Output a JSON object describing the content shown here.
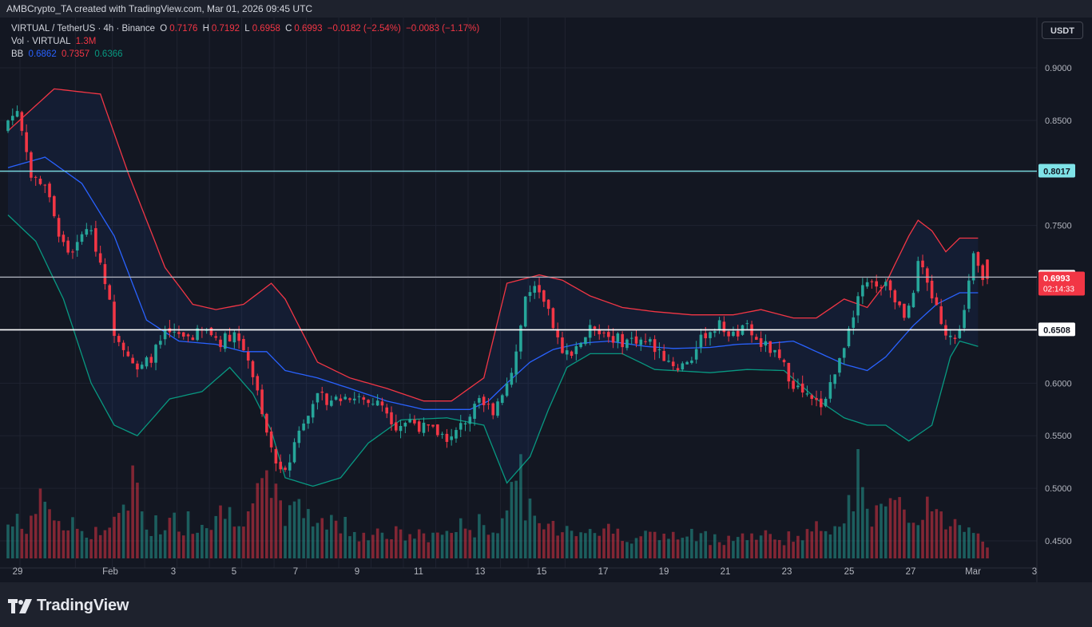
{
  "header": {
    "attribution": "AMBCrypto_TA created with TradingView.com, Mar 01, 2026 09:45 UTC"
  },
  "legend": {
    "symbol": "VIRTUAL / TetherUS · 4h · Binance",
    "open_label": "O",
    "open": "0.7176",
    "high_label": "H",
    "high": "0.7192",
    "low_label": "L",
    "low": "0.6958",
    "close_label": "C",
    "close": "0.6993",
    "change": "−0.0182 (−2.54%)",
    "change2": "−0.0083 (−1.17%)",
    "vol_label": "Vol · VIRTUAL",
    "vol_value": "1.3M",
    "bb_label": "BB",
    "bb_basis": "0.6862",
    "bb_upper": "0.7357",
    "bb_lower": "0.6366"
  },
  "currency_button": "USDT",
  "footer": {
    "brand": "TradingView"
  },
  "colors": {
    "background": "#131722",
    "up": "#26a69a",
    "down": "#f23645",
    "bb_basis": "#2962ff",
    "bb_upper": "#f23645",
    "bb_lower": "#089981",
    "level_cyan": "#7fe3e8",
    "level_grey": "#b2b5be",
    "level_white": "#ffffff"
  },
  "chart_data": {
    "type": "candlestick",
    "interval": "4h",
    "ylim": [
      0.43,
      0.92
    ],
    "y_ticks": [
      "0.9000",
      "0.8500",
      "0.7500",
      "0.6000",
      "0.5500",
      "0.5000",
      "0.4500"
    ],
    "x_ticks": [
      "29",
      "Feb",
      "3",
      "5",
      "7",
      "9",
      "11",
      "13",
      "15",
      "17",
      "19",
      "21",
      "23",
      "25",
      "27",
      "Mar",
      "3"
    ],
    "horizontal_levels": [
      {
        "value": 0.8017,
        "label": "0.8017",
        "color": "#7fe3e8"
      },
      {
        "value": 0.7009,
        "label": "0.7009",
        "color": "#b2b5be"
      },
      {
        "value": 0.6508,
        "label": "0.6508",
        "color": "#ffffff"
      }
    ],
    "last_price": {
      "value": 0.6993,
      "label": "0.6993",
      "countdown": "02:14:33"
    },
    "bb_upper_key": [
      [
        0,
        0.84
      ],
      [
        10,
        0.88
      ],
      [
        20,
        0.875
      ],
      [
        26,
        0.8
      ],
      [
        34,
        0.71
      ],
      [
        40,
        0.675
      ],
      [
        45,
        0.67
      ],
      [
        51,
        0.675
      ],
      [
        57,
        0.695
      ],
      [
        60,
        0.68
      ],
      [
        67,
        0.62
      ],
      [
        74,
        0.605
      ],
      [
        82,
        0.595
      ],
      [
        90,
        0.583
      ],
      [
        96,
        0.583
      ],
      [
        103,
        0.605
      ],
      [
        108,
        0.695
      ],
      [
        115,
        0.703
      ],
      [
        120,
        0.698
      ],
      [
        126,
        0.683
      ],
      [
        133,
        0.672
      ],
      [
        140,
        0.668
      ],
      [
        148,
        0.665
      ],
      [
        157,
        0.665
      ],
      [
        163,
        0.67
      ],
      [
        170,
        0.662
      ],
      [
        175,
        0.662
      ],
      [
        181,
        0.68
      ],
      [
        186,
        0.672
      ],
      [
        190,
        0.695
      ],
      [
        195,
        0.74
      ],
      [
        197,
        0.755
      ],
      [
        200,
        0.745
      ],
      [
        203,
        0.725
      ],
      [
        206,
        0.738
      ]
    ],
    "bb_basis_key": [
      [
        0,
        0.805
      ],
      [
        8,
        0.815
      ],
      [
        16,
        0.79
      ],
      [
        23,
        0.74
      ],
      [
        30,
        0.66
      ],
      [
        37,
        0.64
      ],
      [
        45,
        0.637
      ],
      [
        51,
        0.63
      ],
      [
        56,
        0.63
      ],
      [
        60,
        0.612
      ],
      [
        67,
        0.605
      ],
      [
        74,
        0.595
      ],
      [
        82,
        0.583
      ],
      [
        90,
        0.575
      ],
      [
        100,
        0.575
      ],
      [
        104,
        0.583
      ],
      [
        108,
        0.6
      ],
      [
        113,
        0.62
      ],
      [
        118,
        0.632
      ],
      [
        124,
        0.638
      ],
      [
        130,
        0.64
      ],
      [
        138,
        0.635
      ],
      [
        144,
        0.633
      ],
      [
        152,
        0.634
      ],
      [
        158,
        0.637
      ],
      [
        165,
        0.638
      ],
      [
        170,
        0.64
      ],
      [
        175,
        0.63
      ],
      [
        181,
        0.618
      ],
      [
        186,
        0.612
      ],
      [
        190,
        0.625
      ],
      [
        196,
        0.655
      ],
      [
        201,
        0.675
      ],
      [
        206,
        0.686
      ]
    ],
    "bb_lower_key": [
      [
        0,
        0.76
      ],
      [
        6,
        0.735
      ],
      [
        12,
        0.68
      ],
      [
        18,
        0.6
      ],
      [
        23,
        0.56
      ],
      [
        28,
        0.55
      ],
      [
        35,
        0.585
      ],
      [
        42,
        0.592
      ],
      [
        48,
        0.615
      ],
      [
        53,
        0.59
      ],
      [
        57,
        0.555
      ],
      [
        60,
        0.51
      ],
      [
        66,
        0.502
      ],
      [
        72,
        0.51
      ],
      [
        78,
        0.543
      ],
      [
        85,
        0.565
      ],
      [
        95,
        0.567
      ],
      [
        103,
        0.56
      ],
      [
        108,
        0.505
      ],
      [
        113,
        0.53
      ],
      [
        117,
        0.575
      ],
      [
        121,
        0.615
      ],
      [
        126,
        0.628
      ],
      [
        133,
        0.628
      ],
      [
        140,
        0.613
      ],
      [
        152,
        0.61
      ],
      [
        160,
        0.613
      ],
      [
        168,
        0.612
      ],
      [
        175,
        0.585
      ],
      [
        181,
        0.567
      ],
      [
        186,
        0.56
      ],
      [
        190,
        0.56
      ],
      [
        195,
        0.545
      ],
      [
        200,
        0.56
      ],
      [
        204,
        0.625
      ],
      [
        206,
        0.64
      ],
      [
        210,
        0.635
      ]
    ],
    "price_key": [
      [
        0,
        0.85
      ],
      [
        2,
        0.86
      ],
      [
        5,
        0.8
      ],
      [
        9,
        0.78
      ],
      [
        11,
        0.74
      ],
      [
        13,
        0.725
      ],
      [
        15,
        0.73
      ],
      [
        17,
        0.75
      ],
      [
        19,
        0.73
      ],
      [
        21,
        0.7
      ],
      [
        23,
        0.65
      ],
      [
        26,
        0.63
      ],
      [
        28,
        0.61
      ],
      [
        31,
        0.625
      ],
      [
        34,
        0.645
      ],
      [
        37,
        0.645
      ],
      [
        40,
        0.645
      ],
      [
        43,
        0.65
      ],
      [
        46,
        0.64
      ],
      [
        49,
        0.648
      ],
      [
        52,
        0.625
      ],
      [
        55,
        0.575
      ],
      [
        57,
        0.535
      ],
      [
        59,
        0.515
      ],
      [
        61,
        0.53
      ],
      [
        63,
        0.555
      ],
      [
        66,
        0.585
      ],
      [
        69,
        0.585
      ],
      [
        72,
        0.585
      ],
      [
        75,
        0.59
      ],
      [
        78,
        0.582
      ],
      [
        81,
        0.58
      ],
      [
        84,
        0.56
      ],
      [
        87,
        0.565
      ],
      [
        90,
        0.557
      ],
      [
        93,
        0.553
      ],
      [
        96,
        0.547
      ],
      [
        99,
        0.565
      ],
      [
        102,
        0.58
      ],
      [
        105,
        0.575
      ],
      [
        108,
        0.6
      ],
      [
        110,
        0.63
      ],
      [
        112,
        0.682
      ],
      [
        114,
        0.688
      ],
      [
        116,
        0.675
      ],
      [
        118,
        0.655
      ],
      [
        120,
        0.625
      ],
      [
        122,
        0.632
      ],
      [
        124,
        0.64
      ],
      [
        127,
        0.655
      ],
      [
        130,
        0.645
      ],
      [
        133,
        0.64
      ],
      [
        136,
        0.642
      ],
      [
        139,
        0.638
      ],
      [
        142,
        0.625
      ],
      [
        145,
        0.615
      ],
      [
        148,
        0.625
      ],
      [
        151,
        0.648
      ],
      [
        154,
        0.655
      ],
      [
        157,
        0.645
      ],
      [
        160,
        0.652
      ],
      [
        162,
        0.64
      ],
      [
        165,
        0.632
      ],
      [
        168,
        0.615
      ],
      [
        170,
        0.6
      ],
      [
        172,
        0.59
      ],
      [
        174,
        0.582
      ],
      [
        176,
        0.58
      ],
      [
        178,
        0.6
      ],
      [
        180,
        0.62
      ],
      [
        182,
        0.655
      ],
      [
        184,
        0.682
      ],
      [
        186,
        0.693
      ],
      [
        188,
        0.69
      ],
      [
        190,
        0.7
      ],
      [
        192,
        0.68
      ],
      [
        194,
        0.666
      ],
      [
        196,
        0.69
      ],
      [
        197,
        0.72
      ],
      [
        199,
        0.69
      ],
      [
        201,
        0.672
      ],
      [
        203,
        0.65
      ],
      [
        205,
        0.64
      ],
      [
        207,
        0.67
      ],
      [
        209,
        0.72
      ],
      [
        211,
        0.7
      ],
      [
        212,
        0.6993
      ]
    ],
    "volume_key": [
      [
        0,
        0.3
      ],
      [
        5,
        0.35
      ],
      [
        8,
        0.55
      ],
      [
        12,
        0.3
      ],
      [
        20,
        0.25
      ],
      [
        26,
        0.4
      ],
      [
        27,
        1.0
      ],
      [
        30,
        0.3
      ],
      [
        40,
        0.35
      ],
      [
        50,
        0.45
      ],
      [
        53,
        0.5
      ],
      [
        56,
        0.6
      ],
      [
        60,
        0.45
      ],
      [
        66,
        0.4
      ],
      [
        76,
        0.25
      ],
      [
        90,
        0.2
      ],
      [
        100,
        0.3
      ],
      [
        106,
        0.3
      ],
      [
        108,
        0.45
      ],
      [
        110,
        0.85
      ],
      [
        114,
        0.3
      ],
      [
        120,
        0.3
      ],
      [
        140,
        0.2
      ],
      [
        160,
        0.2
      ],
      [
        172,
        0.2
      ],
      [
        178,
        0.3
      ],
      [
        182,
        0.55
      ],
      [
        184,
        0.75
      ],
      [
        186,
        0.45
      ],
      [
        196,
        0.4
      ],
      [
        198,
        0.5
      ],
      [
        202,
        0.35
      ],
      [
        208,
        0.35
      ],
      [
        212,
        0.15
      ]
    ]
  }
}
